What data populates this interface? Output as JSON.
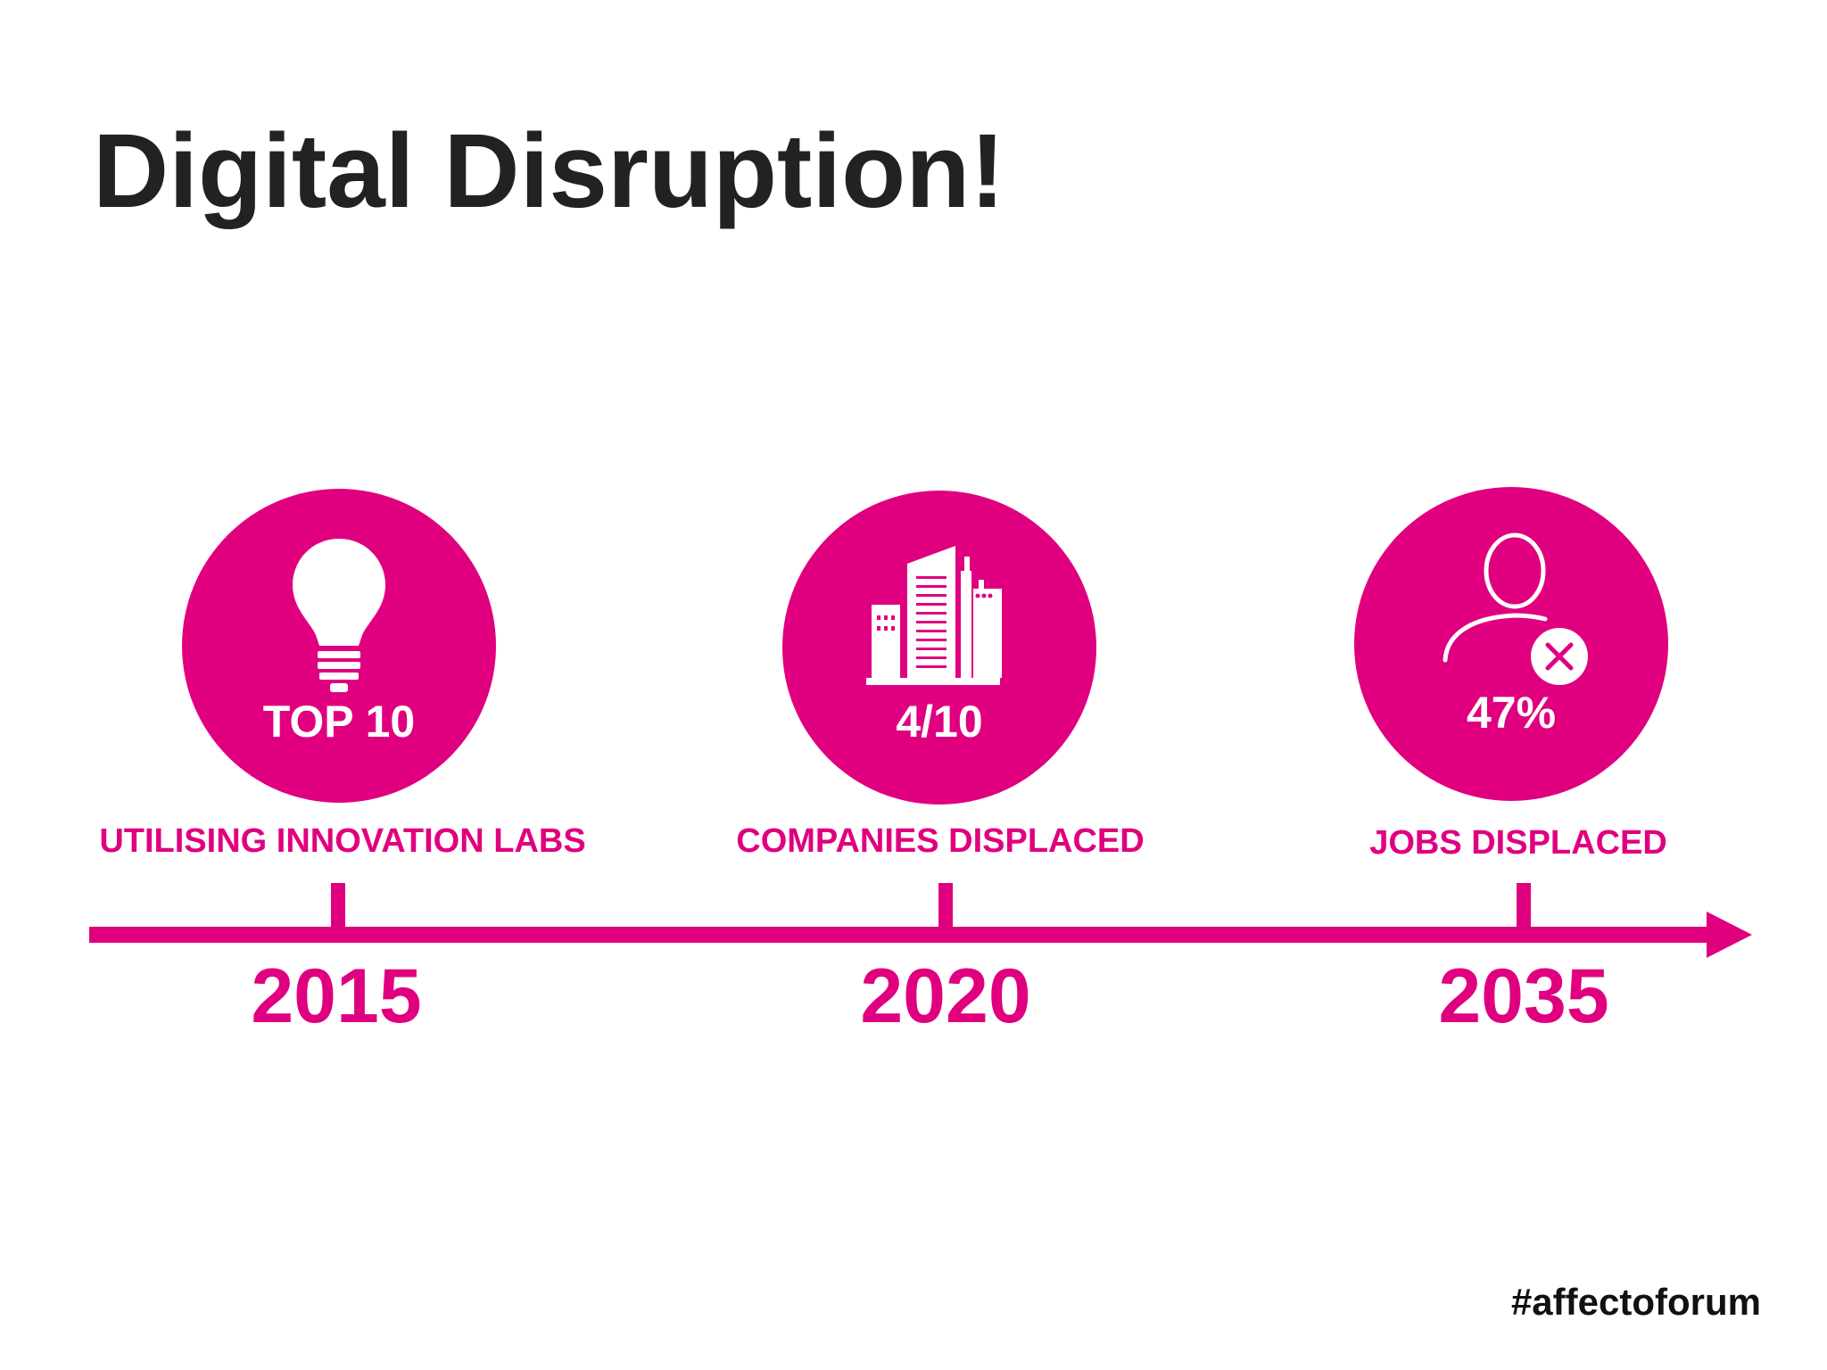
{
  "title": "Digital Disruption!",
  "accent_color": "#e0007f",
  "milestones": [
    {
      "year": "2015",
      "stat": "TOP 10",
      "caption": "UTILISING INNOVATION LABS",
      "icon": "lightbulb-icon"
    },
    {
      "year": "2020",
      "stat": "4/10",
      "caption": "COMPANIES DISPLACED",
      "icon": "buildings-icon"
    },
    {
      "year": "2035",
      "stat": "47%",
      "caption": "JOBS DISPLACED",
      "icon": "person-remove-icon"
    }
  ],
  "hashtag": "#affectoforum"
}
